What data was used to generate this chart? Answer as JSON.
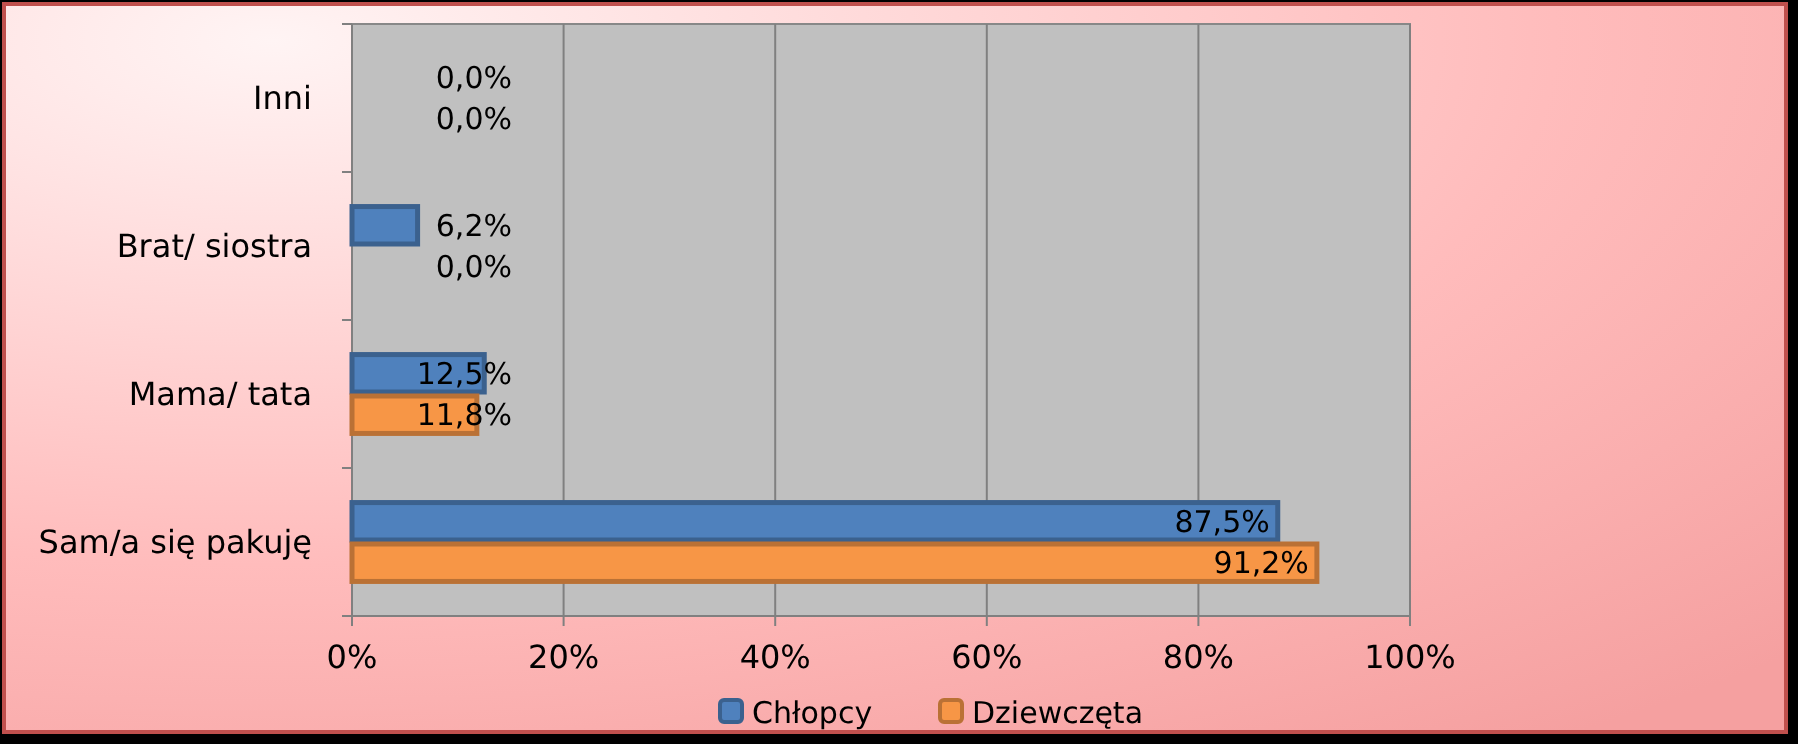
{
  "chart_data": {
    "type": "bar",
    "orientation": "horizontal",
    "categories": [
      "Inni",
      "Brat/ siostra",
      "Mama/ tata",
      "Sam/a się pakuję"
    ],
    "series": [
      {
        "name": "Chłopcy",
        "color": "#4f81bd",
        "values": [
          0,
          6.2,
          12.5,
          87.5
        ],
        "value_labels": [
          "0,0%",
          "6,2%",
          "12,5%",
          "87,5%"
        ]
      },
      {
        "name": "Dziewczęta",
        "color": "#f79646",
        "values": [
          0,
          0,
          11.8,
          91.2
        ],
        "value_labels": [
          "0,0%",
          "0,0%",
          "11,8%",
          "91,2%"
        ]
      }
    ],
    "xlim": [
      0,
      100
    ],
    "xticks": [
      {
        "value": 0,
        "label": "0%"
      },
      {
        "value": 20,
        "label": "20%"
      },
      {
        "value": 40,
        "label": "40%"
      },
      {
        "value": 60,
        "label": "60%"
      },
      {
        "value": 80,
        "label": "80%"
      },
      {
        "value": 100,
        "label": "100%"
      }
    ],
    "grid": "x",
    "legend": "bottom"
  }
}
